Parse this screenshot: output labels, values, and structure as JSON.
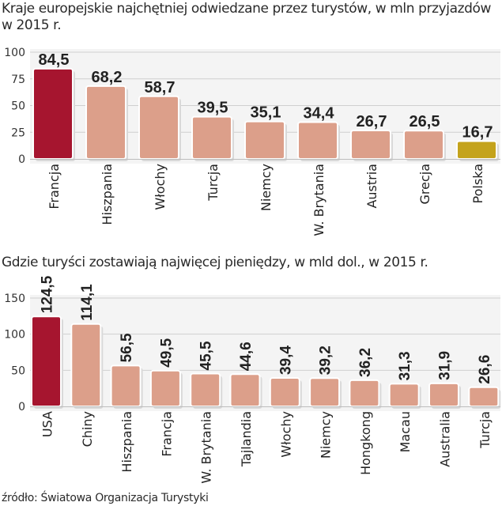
{
  "chart_data": [
    {
      "type": "bar",
      "title": "Kraje europejskie najchętniej odwiedzane przez turystów, w mln przyjazdów w 2015 r.",
      "categories": [
        "Francja",
        "Hiszpania",
        "Włochy",
        "Turcja",
        "Niemcy",
        "W. Brytania",
        "Austria",
        "Grecja",
        "Polska"
      ],
      "values": [
        84.5,
        68.2,
        58.7,
        39.5,
        35.1,
        34.4,
        26.7,
        26.5,
        16.7
      ],
      "value_labels": [
        "84,5",
        "68,2",
        "58,7",
        "39,5",
        "35,1",
        "34,4",
        "26,7",
        "26,5",
        "16,7"
      ],
      "highlight": {
        "Francja": "#a6152f",
        "Polska": "#c4a31c"
      },
      "yticks": [
        0,
        25,
        50,
        75,
        100
      ],
      "ylim": [
        0,
        100
      ],
      "grid": true,
      "xlabel": "",
      "ylabel": ""
    },
    {
      "type": "bar",
      "title": "Gdzie turyści zostawiają najwięcej pieniędzy, w mld dol., w 2015 r.",
      "categories": [
        "USA",
        "Chiny",
        "Hiszpania",
        "Francja",
        "W. Brytania",
        "Tajlandia",
        "Włochy",
        "Niemcy",
        "Hongkong",
        "Macau",
        "Australia",
        "Turcja"
      ],
      "values": [
        124.5,
        114.1,
        56.5,
        49.5,
        45.5,
        44.6,
        39.4,
        39.2,
        36.2,
        31.3,
        31.9,
        26.6
      ],
      "value_labels": [
        "124,5",
        "114,1",
        "56,5",
        "49,5",
        "45,5",
        "44,6",
        "39,4",
        "39,2",
        "36,2",
        "31,3",
        "31,9",
        "26,6"
      ],
      "highlight": {
        "USA": "#a6152f"
      },
      "yticks": [
        0,
        50,
        100,
        150
      ],
      "ylim": [
        0,
        150
      ],
      "grid": true,
      "xlabel": "",
      "ylabel": ""
    }
  ],
  "colors": {
    "bar": "#dc9f8a",
    "bar_stroke": "#ffffff",
    "grid": "#cfcfcf",
    "shadow": "#d9d9d9",
    "text": "#222222"
  },
  "source": "źródło: Światowa Organizacja Turystyki"
}
